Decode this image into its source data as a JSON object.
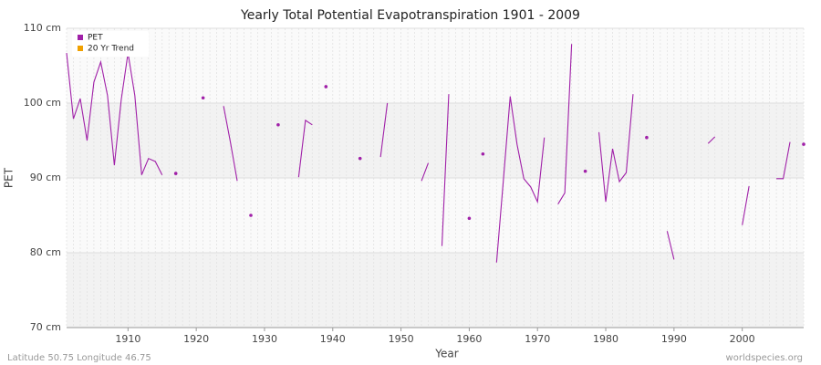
{
  "chart_data": {
    "type": "line",
    "title": "Yearly Total Potential Evapotranspiration 1901 - 2009",
    "xlabel": "Year",
    "ylabel": "PET",
    "footer_left": "Latitude 50.75 Longitude 46.75",
    "footer_right": "worldspecies.org",
    "x": [
      1901,
      1902,
      1903,
      1904,
      1905,
      1906,
      1907,
      1908,
      1909,
      1910,
      1911,
      1912,
      1913,
      1914,
      1915,
      1916,
      1917,
      1918,
      1919,
      1920,
      1921,
      1922,
      1923,
      1924,
      1925,
      1926,
      1927,
      1928,
      1929,
      1930,
      1931,
      1932,
      1933,
      1934,
      1935,
      1936,
      1937,
      1938,
      1939,
      1940,
      1941,
      1942,
      1943,
      1944,
      1945,
      1946,
      1947,
      1948,
      1949,
      1950,
      1951,
      1952,
      1953,
      1954,
      1955,
      1956,
      1957,
      1958,
      1959,
      1960,
      1961,
      1962,
      1963,
      1964,
      1965,
      1966,
      1967,
      1968,
      1969,
      1970,
      1971,
      1972,
      1973,
      1974,
      1975,
      1976,
      1977,
      1978,
      1979,
      1980,
      1981,
      1982,
      1983,
      1984,
      1985,
      1986,
      1987,
      1988,
      1989,
      1990,
      1991,
      1992,
      1993,
      1994,
      1995,
      1996,
      1997,
      1998,
      1999,
      2000,
      2001,
      2002,
      2003,
      2004,
      2005,
      2006,
      2007,
      2008,
      2009
    ],
    "series": [
      {
        "name": "PET",
        "color": "#a020a8",
        "values": [
          106.7,
          97.9,
          100.6,
          95.0,
          102.8,
          105.5,
          101.0,
          91.7,
          100.4,
          106.7,
          101.0,
          90.4,
          92.6,
          92.2,
          90.4,
          null,
          90.6,
          null,
          null,
          null,
          100.7,
          null,
          null,
          99.6,
          94.8,
          89.6,
          null,
          85.0,
          null,
          null,
          null,
          97.1,
          null,
          null,
          90.1,
          97.7,
          97.1,
          null,
          102.2,
          null,
          null,
          null,
          null,
          92.6,
          null,
          null,
          92.8,
          100.0,
          null,
          null,
          null,
          null,
          89.6,
          92.0,
          null,
          80.9,
          101.2,
          null,
          null,
          84.6,
          null,
          93.2,
          null,
          78.7,
          89.7,
          100.9,
          94.5,
          89.9,
          88.8,
          86.8,
          95.4,
          null,
          86.5,
          88.0,
          107.9,
          null,
          90.9,
          null,
          96.1,
          86.8,
          93.9,
          89.5,
          90.7,
          101.2,
          null,
          95.4,
          null,
          null,
          82.9,
          79.1,
          null,
          null,
          null,
          null,
          94.6,
          95.5,
          null,
          null,
          null,
          83.7,
          88.9,
          null,
          null,
          null,
          89.9,
          89.9,
          94.8,
          null,
          94.5
        ]
      }
    ],
    "legend": [
      {
        "name": "PET",
        "color": "#a020a8"
      },
      {
        "name": "20 Yr Trend",
        "color": "#f0a000"
      }
    ],
    "xlim": [
      1901,
      2009
    ],
    "xticks": [
      1910,
      1920,
      1930,
      1940,
      1950,
      1960,
      1970,
      1980,
      1990,
      2000
    ],
    "ylim": [
      70,
      110
    ],
    "yticks": [
      {
        "value": 70,
        "label": "70 cm"
      },
      {
        "value": 80,
        "label": "80 cm"
      },
      {
        "value": 90,
        "label": "90 cm"
      },
      {
        "value": 100,
        "label": "100 cm"
      },
      {
        "value": 110,
        "label": "110 cm"
      }
    ],
    "grid": true
  }
}
